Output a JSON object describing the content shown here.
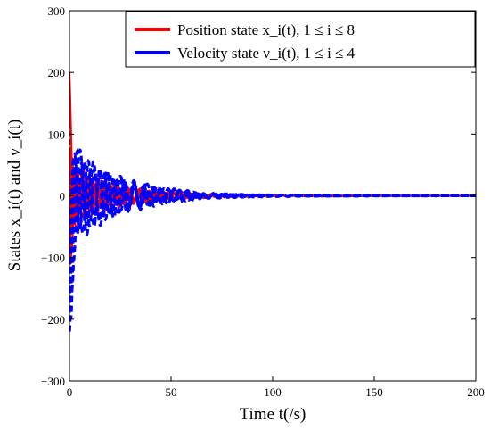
{
  "chart_data": {
    "type": "line",
    "title": "",
    "xlabel": "Time t(/s)",
    "ylabel": "States x_i(t) and ν_i(t)",
    "xlim": [
      0,
      200
    ],
    "ylim": [
      -300,
      300
    ],
    "xticks": [
      0,
      50,
      100,
      150,
      200
    ],
    "yticks": [
      -300,
      -200,
      -100,
      0,
      100,
      200,
      300
    ],
    "xtick_labels": [
      "0",
      "50",
      "100",
      "150",
      "200"
    ],
    "ytick_labels": [
      "−300",
      "−200",
      "−100",
      "0",
      "100",
      "200",
      "300"
    ],
    "grid": false,
    "legend_position": "top-right",
    "legend": [
      {
        "label": "Position state x_i(t), 1 ≤ i ≤ 8",
        "color": "#ff0000"
      },
      {
        "label": "Velocity state ν_i(t), 1 ≤ i ≤ 4",
        "color": "#0000ff"
      }
    ],
    "series": [
      {
        "name": "Position state x_i(t), 1 ≤ i ≤ 8",
        "color": "#ff0000",
        "envelope": {
          "x": [
            0,
            1,
            2,
            5,
            10,
            15,
            20,
            30,
            40,
            50,
            60,
            70,
            80,
            100,
            120,
            150,
            200
          ],
          "upper": [
            200,
            120,
            60,
            45,
            35,
            28,
            22,
            14,
            10,
            7,
            5,
            3,
            2,
            1,
            0.5,
            0.2,
            0
          ],
          "lower": [
            -180,
            -120,
            -60,
            -45,
            -35,
            -28,
            -22,
            -14,
            -10,
            -7,
            -5,
            -3,
            -2,
            -1,
            -0.5,
            -0.2,
            0
          ]
        }
      },
      {
        "name": "Velocity state ν_i(t), 1 ≤ i ≤ 4",
        "color": "#0000ff",
        "envelope": {
          "x": [
            0,
            1,
            2,
            5,
            10,
            15,
            20,
            30,
            40,
            50,
            60,
            70,
            80,
            100,
            120,
            150,
            200
          ],
          "upper": [
            90,
            80,
            85,
            75,
            60,
            48,
            38,
            26,
            18,
            12,
            8,
            5,
            3,
            1.5,
            0.7,
            0.3,
            0
          ],
          "lower": [
            -255,
            -200,
            -110,
            -70,
            -60,
            -48,
            -38,
            -26,
            -18,
            -12,
            -8,
            -5,
            -3,
            -1.5,
            -0.7,
            -0.3,
            0
          ]
        }
      }
    ]
  }
}
